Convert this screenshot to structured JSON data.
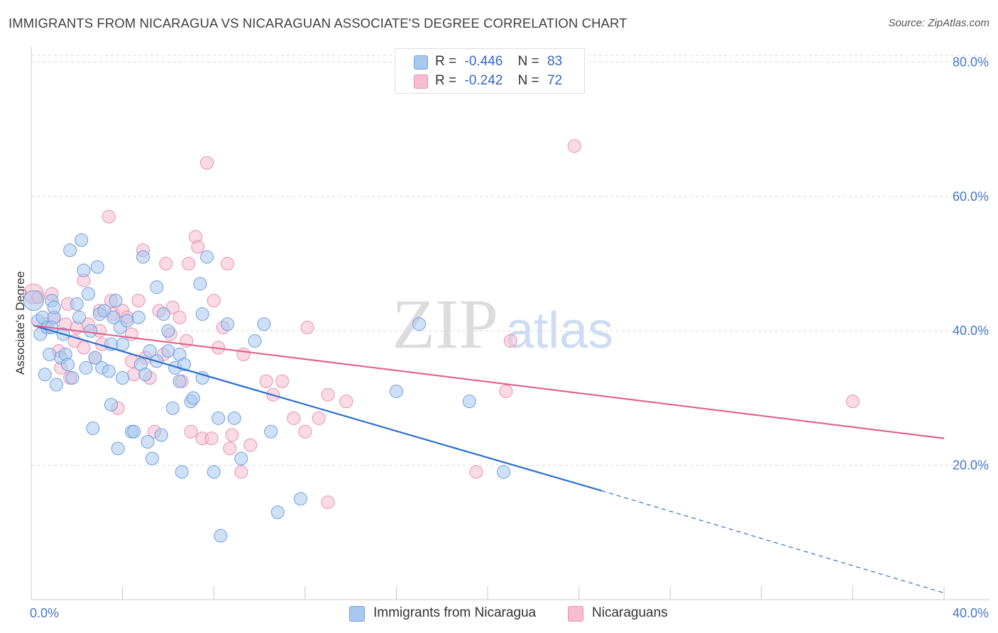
{
  "title": "IMMIGRANTS FROM NICARAGUA VS NICARAGUAN ASSOCIATE'S DEGREE CORRELATION CHART",
  "source": "Source: ZipAtlas.com",
  "watermark": {
    "zip": "ZIP",
    "atlas": "atlas"
  },
  "legend": {
    "r_label": "R =",
    "n_label": "N =",
    "blue": {
      "r": "-0.446",
      "n": "83"
    },
    "pink": {
      "r": "-0.242",
      "n": "72"
    }
  },
  "colors": {
    "blue_fill": "#a9c8f0",
    "blue_stroke": "#6f9fdc",
    "blue_line": "#2a6fd0",
    "pink_fill": "#f6bcd0",
    "pink_stroke": "#e890b0",
    "pink_line": "#e0608c",
    "grid": "#d8d8d8",
    "tick_text": "#4477cc"
  },
  "chart_data": {
    "type": "scatter",
    "title": "IMMIGRANTS FROM NICARAGUA VS NICARAGUAN ASSOCIATE'S DEGREE CORRELATION CHART",
    "xlabel": "",
    "ylabel": "Associate's Degree",
    "xlim": [
      0,
      40
    ],
    "ylim": [
      0,
      81
    ],
    "x_tick_labels": [
      "0.0%",
      "40.0%"
    ],
    "y_ticks": [
      20,
      40,
      60,
      80
    ],
    "y_tick_labels": [
      "20.0%",
      "40.0%",
      "60.0%",
      "80.0%"
    ],
    "series": [
      {
        "name": "Immigrants from Nicaragua",
        "color": "blue",
        "trend": {
          "x1": 0.1,
          "y1": 40.8,
          "x2": 25.0,
          "y2": 16.2,
          "dash_to_x": 40.0,
          "dash_to_y": 1.0
        },
        "points": [
          [
            0.1,
            44.5
          ],
          [
            0.3,
            41.5
          ],
          [
            0.4,
            39.5
          ],
          [
            0.5,
            42.0
          ],
          [
            0.6,
            33.5
          ],
          [
            0.7,
            40.5
          ],
          [
            0.8,
            36.5
          ],
          [
            0.9,
            44.5
          ],
          [
            1.0,
            42.0
          ],
          [
            1.1,
            32.0
          ],
          [
            1.3,
            36.0
          ],
          [
            1.4,
            39.5
          ],
          [
            1.5,
            36.5
          ],
          [
            1.6,
            35.0
          ],
          [
            1.8,
            33.0
          ],
          [
            1.7,
            52.0
          ],
          [
            2.0,
            44.0
          ],
          [
            2.1,
            42.0
          ],
          [
            2.2,
            53.5
          ],
          [
            2.3,
            49.0
          ],
          [
            2.4,
            34.5
          ],
          [
            2.5,
            45.5
          ],
          [
            2.6,
            40.0
          ],
          [
            2.7,
            25.5
          ],
          [
            2.9,
            49.5
          ],
          [
            3.0,
            42.5
          ],
          [
            3.1,
            34.5
          ],
          [
            3.2,
            43.0
          ],
          [
            3.4,
            34.0
          ],
          [
            3.5,
            29.0
          ],
          [
            3.6,
            42.0
          ],
          [
            3.7,
            44.5
          ],
          [
            3.8,
            22.5
          ],
          [
            3.9,
            40.5
          ],
          [
            4.0,
            38.0
          ],
          [
            4.2,
            41.5
          ],
          [
            4.4,
            25.0
          ],
          [
            4.5,
            25.0
          ],
          [
            4.7,
            42.0
          ],
          [
            4.8,
            35.0
          ],
          [
            4.9,
            51.0
          ],
          [
            5.0,
            33.5
          ],
          [
            5.1,
            23.5
          ],
          [
            5.2,
            37.0
          ],
          [
            5.3,
            21.0
          ],
          [
            5.5,
            46.5
          ],
          [
            5.5,
            35.5
          ],
          [
            5.7,
            24.5
          ],
          [
            5.8,
            42.5
          ],
          [
            6.0,
            37.0
          ],
          [
            6.2,
            28.5
          ],
          [
            6.3,
            34.5
          ],
          [
            6.5,
            32.5
          ],
          [
            6.5,
            36.5
          ],
          [
            6.6,
            19.0
          ],
          [
            6.7,
            35.0
          ],
          [
            7.0,
            29.5
          ],
          [
            7.1,
            30.0
          ],
          [
            7.4,
            47.0
          ],
          [
            7.5,
            42.5
          ],
          [
            7.7,
            51.0
          ],
          [
            8.0,
            19.0
          ],
          [
            8.2,
            27.0
          ],
          [
            8.3,
            9.5
          ],
          [
            8.6,
            41.0
          ],
          [
            8.9,
            27.0
          ],
          [
            9.2,
            21.0
          ],
          [
            9.8,
            38.5
          ],
          [
            10.2,
            41.0
          ],
          [
            10.5,
            25.0
          ],
          [
            10.8,
            13.0
          ],
          [
            11.8,
            15.0
          ],
          [
            17.0,
            41.0
          ],
          [
            16.0,
            31.0
          ],
          [
            19.2,
            29.5
          ],
          [
            20.7,
            19.0
          ],
          [
            1.0,
            43.5
          ],
          [
            0.9,
            40.5
          ],
          [
            2.8,
            36.0
          ],
          [
            4.0,
            33.0
          ],
          [
            6.0,
            40.0
          ],
          [
            3.5,
            38.0
          ],
          [
            7.5,
            33.0
          ]
        ]
      },
      {
        "name": "Nicaraguans",
        "color": "pink",
        "trend": {
          "x1": 0.1,
          "y1": 40.8,
          "x2": 40.0,
          "y2": 24.0
        },
        "points": [
          [
            0.1,
            45.5
          ],
          [
            0.3,
            45.0
          ],
          [
            0.6,
            41.0
          ],
          [
            0.9,
            45.5
          ],
          [
            1.0,
            42.0
          ],
          [
            1.2,
            37.0
          ],
          [
            1.3,
            34.5
          ],
          [
            1.5,
            41.0
          ],
          [
            1.6,
            44.0
          ],
          [
            1.7,
            33.0
          ],
          [
            1.9,
            38.5
          ],
          [
            2.0,
            40.5
          ],
          [
            2.3,
            47.5
          ],
          [
            2.5,
            41.0
          ],
          [
            2.8,
            36.0
          ],
          [
            3.0,
            40.0
          ],
          [
            3.1,
            38.0
          ],
          [
            3.4,
            57.0
          ],
          [
            3.5,
            44.5
          ],
          [
            3.6,
            42.5
          ],
          [
            3.8,
            28.5
          ],
          [
            4.0,
            43.0
          ],
          [
            4.2,
            42.0
          ],
          [
            4.4,
            35.5
          ],
          [
            4.5,
            33.5
          ],
          [
            4.7,
            44.5
          ],
          [
            4.9,
            52.0
          ],
          [
            5.0,
            36.0
          ],
          [
            5.2,
            33.0
          ],
          [
            5.4,
            25.0
          ],
          [
            5.6,
            43.0
          ],
          [
            5.8,
            36.5
          ],
          [
            5.9,
            50.0
          ],
          [
            6.1,
            39.5
          ],
          [
            6.2,
            43.5
          ],
          [
            6.5,
            42.0
          ],
          [
            6.6,
            32.5
          ],
          [
            6.8,
            38.5
          ],
          [
            6.9,
            50.0
          ],
          [
            7.0,
            25.0
          ],
          [
            7.2,
            54.0
          ],
          [
            7.3,
            52.5
          ],
          [
            7.5,
            24.0
          ],
          [
            7.7,
            65.0
          ],
          [
            7.9,
            24.0
          ],
          [
            8.0,
            44.5
          ],
          [
            8.2,
            37.5
          ],
          [
            8.4,
            40.5
          ],
          [
            8.6,
            50.0
          ],
          [
            8.7,
            22.5
          ],
          [
            8.8,
            24.5
          ],
          [
            9.2,
            19.0
          ],
          [
            9.3,
            36.5
          ],
          [
            9.6,
            23.0
          ],
          [
            10.3,
            32.5
          ],
          [
            10.6,
            30.5
          ],
          [
            11.0,
            32.5
          ],
          [
            11.5,
            27.0
          ],
          [
            12.0,
            25.0
          ],
          [
            12.1,
            40.5
          ],
          [
            12.6,
            27.0
          ],
          [
            13.0,
            30.5
          ],
          [
            13.0,
            14.5
          ],
          [
            13.8,
            29.5
          ],
          [
            19.5,
            19.0
          ],
          [
            20.8,
            31.0
          ],
          [
            21.0,
            38.5
          ],
          [
            23.8,
            67.5
          ],
          [
            36.0,
            29.5
          ],
          [
            3.0,
            43.0
          ],
          [
            2.3,
            37.5
          ],
          [
            4.4,
            39.5
          ]
        ]
      }
    ]
  },
  "bottom_legend": {
    "blue": "Immigrants from Nicaragua",
    "pink": "Nicaraguans"
  }
}
